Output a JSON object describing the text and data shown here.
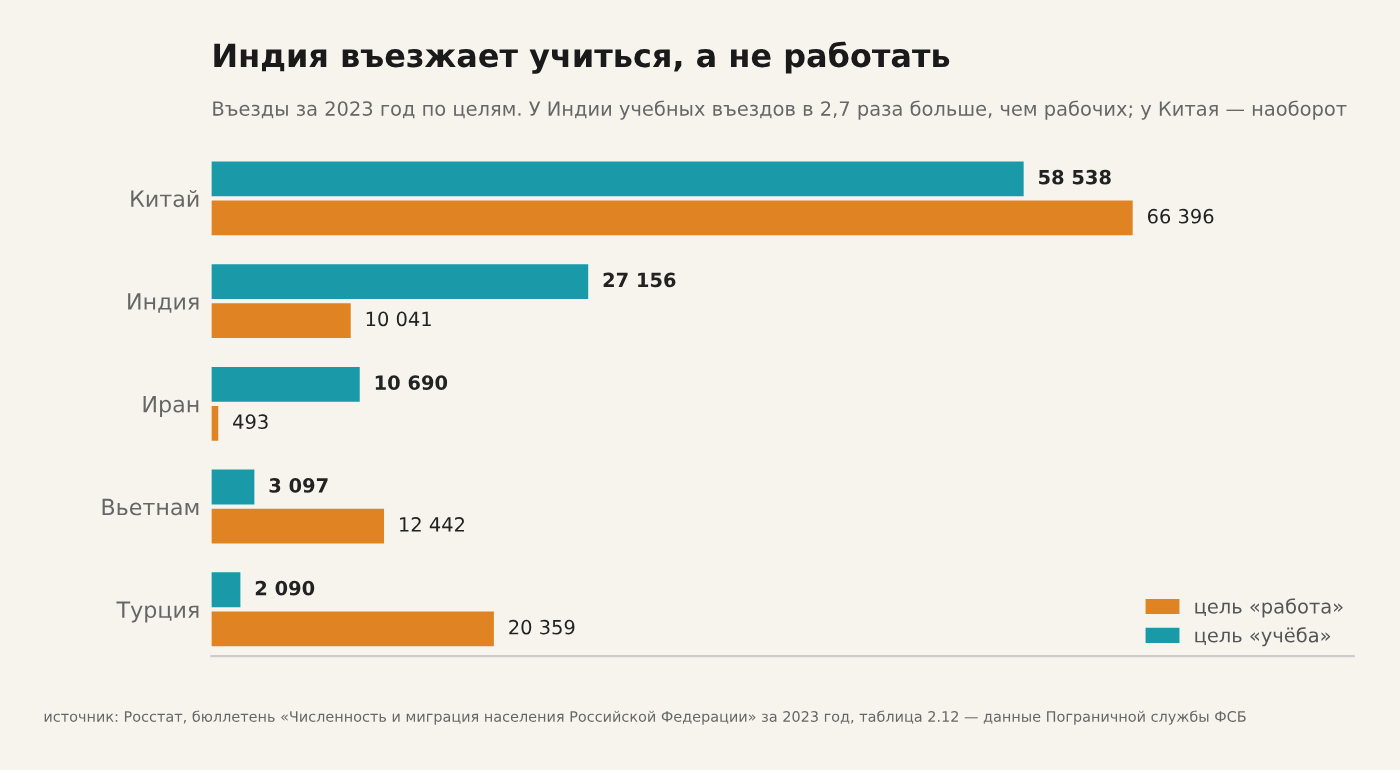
{
  "chart_data": {
    "type": "bar",
    "orientation": "horizontal",
    "title": "Индия въезжает учиться, а не работать",
    "subtitle": "Въезды за 2023 год по целям. У Индии учебных въездов в 2,7 раза больше, чем рабочих; у Китая — наоборот",
    "categories": [
      "Китай",
      "Индия",
      "Иран",
      "Вьетнам",
      "Турция"
    ],
    "series": [
      {
        "name": "цель «учёба»",
        "color": "#1a9aa8",
        "values": [
          58538,
          27156,
          10690,
          3097,
          2090
        ],
        "value_labels": [
          "58 538",
          "27 156",
          "10 690",
          "3 097",
          "2 090"
        ]
      },
      {
        "name": "цель «работа»",
        "color": "#e08423",
        "values": [
          66396,
          10041,
          493,
          12442,
          20359
        ],
        "value_labels": [
          "66 396",
          "10 041",
          "493",
          "12 442",
          "20 359"
        ]
      }
    ],
    "legend": "bottom right",
    "grid": false,
    "tick_labels": "y",
    "annotations": [
      "источник: Росстат, бюллетень «Численность и миграция населения Российской Федерации» за 2023 год, таблица 2.12 — данные Пограничной службы ФСБ"
    ]
  }
}
